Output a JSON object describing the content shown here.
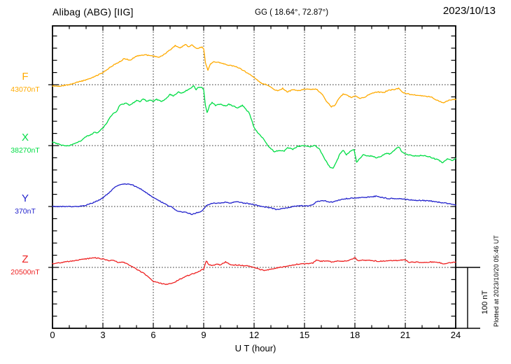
{
  "header": {
    "station_title": "Alibag (ABG)  [IIG]",
    "coords": "GG ( 18.64°, 72.87°)",
    "date": "2023/10/13"
  },
  "side": {
    "plotted_at": "Plotted at 2023/10/20 05:46 UT"
  },
  "chart_data": {
    "type": "line",
    "title": "Alibag (ABG) [IIG] magnetogram for 2023/10/13",
    "xlabel": "U T (hour)",
    "x_range": [
      0,
      24
    ],
    "x_major_ticks": [
      0,
      3,
      6,
      9,
      12,
      15,
      18,
      21,
      24
    ],
    "x_minor_step_hours": 1,
    "y_tick_step_nT": 20,
    "grid": "dotted vertical lines every 3 h; dotted horizontal baseline per component",
    "legend_position": "left margin, one label per baseline",
    "y_scale_bar": {
      "label": "100 nT",
      "nT": 100
    },
    "series": [
      {
        "name": "F",
        "label": "F",
        "base_label": "43070nT",
        "base_nT": 43070,
        "color": "#ffaa00",
        "units": "nT offset from baseline value",
        "points": [
          [
            0,
            -2
          ],
          [
            0.5,
            -2
          ],
          [
            1,
            0
          ],
          [
            1.5,
            4
          ],
          [
            2,
            8
          ],
          [
            2.5,
            13
          ],
          [
            3,
            20
          ],
          [
            3.5,
            30
          ],
          [
            4,
            38
          ],
          [
            4.3,
            43
          ],
          [
            4.6,
            40
          ],
          [
            5,
            47
          ],
          [
            5.5,
            49
          ],
          [
            6,
            47
          ],
          [
            6.3,
            45
          ],
          [
            6.6,
            49
          ],
          [
            7,
            57
          ],
          [
            7.3,
            64
          ],
          [
            7.6,
            60
          ],
          [
            7.9,
            66
          ],
          [
            8.1,
            62
          ],
          [
            8.3,
            65
          ],
          [
            8.6,
            59
          ],
          [
            8.9,
            62
          ],
          [
            9,
            59
          ],
          [
            9.1,
            36
          ],
          [
            9.25,
            24
          ],
          [
            9.4,
            34
          ],
          [
            9.6,
            38
          ],
          [
            10,
            36
          ],
          [
            10.5,
            32
          ],
          [
            11,
            29
          ],
          [
            11.5,
            21
          ],
          [
            12,
            12
          ],
          [
            12.4,
            3
          ],
          [
            12.8,
            -1
          ],
          [
            13.2,
            -8
          ],
          [
            13.4,
            -10
          ],
          [
            13.7,
            -6
          ],
          [
            14,
            -12
          ],
          [
            14.3,
            -8
          ],
          [
            14.7,
            -10
          ],
          [
            15,
            -7
          ],
          [
            15.4,
            -8
          ],
          [
            15.7,
            -7
          ],
          [
            16,
            -14
          ],
          [
            16.3,
            -27
          ],
          [
            16.6,
            -36
          ],
          [
            16.8,
            -34
          ],
          [
            17,
            -25
          ],
          [
            17.3,
            -15
          ],
          [
            17.5,
            -17
          ],
          [
            17.8,
            -21
          ],
          [
            18,
            -18
          ],
          [
            18.3,
            -22
          ],
          [
            18.6,
            -20
          ],
          [
            19,
            -14
          ],
          [
            19.4,
            -12
          ],
          [
            19.7,
            -13
          ],
          [
            20,
            -9
          ],
          [
            20.3,
            -8
          ],
          [
            20.6,
            -6
          ],
          [
            20.8,
            -12
          ],
          [
            21,
            -14
          ],
          [
            21.5,
            -17
          ],
          [
            22,
            -18
          ],
          [
            22.5,
            -20
          ],
          [
            23,
            -27
          ],
          [
            23.3,
            -30
          ],
          [
            23.6,
            -25
          ],
          [
            24,
            -24
          ]
        ]
      },
      {
        "name": "X",
        "label": "X",
        "base_label": "38270nT",
        "base_nT": 38270,
        "color": "#00dd44",
        "units": "nT offset from baseline value",
        "points": [
          [
            0,
            6
          ],
          [
            0.4,
            2
          ],
          [
            0.7,
            0
          ],
          [
            1,
            0
          ],
          [
            1.3,
            3
          ],
          [
            1.7,
            8
          ],
          [
            2,
            15
          ],
          [
            2.3,
            18
          ],
          [
            2.5,
            22
          ],
          [
            2.7,
            21
          ],
          [
            2.9,
            27
          ],
          [
            3,
            29
          ],
          [
            3.2,
            36
          ],
          [
            3.4,
            45
          ],
          [
            3.6,
            53
          ],
          [
            3.8,
            55
          ],
          [
            4,
            66
          ],
          [
            4.2,
            68
          ],
          [
            4.4,
            70
          ],
          [
            4.6,
            66
          ],
          [
            4.8,
            70
          ],
          [
            5,
            74
          ],
          [
            5.2,
            72
          ],
          [
            5.4,
            77
          ],
          [
            5.6,
            73
          ],
          [
            5.8,
            75
          ],
          [
            6,
            73
          ],
          [
            6.2,
            76
          ],
          [
            6.5,
            72
          ],
          [
            6.7,
            76
          ],
          [
            7,
            84
          ],
          [
            7.2,
            82
          ],
          [
            7.5,
            88
          ],
          [
            7.7,
            86
          ],
          [
            8,
            91
          ],
          [
            8.2,
            94
          ],
          [
            8.4,
            98
          ],
          [
            8.55,
            92
          ],
          [
            8.7,
            96
          ],
          [
            8.9,
            95
          ],
          [
            9,
            92
          ],
          [
            9.1,
            66
          ],
          [
            9.2,
            54
          ],
          [
            9.35,
            66
          ],
          [
            9.5,
            71
          ],
          [
            9.7,
            66
          ],
          [
            10,
            68
          ],
          [
            10.3,
            65
          ],
          [
            10.5,
            68
          ],
          [
            11,
            62
          ],
          [
            11.3,
            66
          ],
          [
            11.7,
            54
          ],
          [
            12,
            30
          ],
          [
            12.2,
            22
          ],
          [
            12.5,
            13
          ],
          [
            12.8,
            1
          ],
          [
            13,
            -5
          ],
          [
            13.2,
            -10
          ],
          [
            13.5,
            -8
          ],
          [
            13.8,
            -9
          ],
          [
            14,
            -3
          ],
          [
            14.3,
            -6
          ],
          [
            14.6,
            -1
          ],
          [
            15,
            0
          ],
          [
            15.3,
            -2
          ],
          [
            15.6,
            0
          ],
          [
            15.9,
            -6
          ],
          [
            16.2,
            -22
          ],
          [
            16.5,
            -35
          ],
          [
            16.7,
            -37
          ],
          [
            16.9,
            -27
          ],
          [
            17.1,
            -14
          ],
          [
            17.3,
            -8
          ],
          [
            17.5,
            -15
          ],
          [
            17.7,
            -10
          ],
          [
            17.95,
            -6
          ],
          [
            18.1,
            -27
          ],
          [
            18.3,
            -21
          ],
          [
            18.5,
            -15
          ],
          [
            18.8,
            -17
          ],
          [
            19,
            -17
          ],
          [
            19.3,
            -20
          ],
          [
            19.6,
            -17
          ],
          [
            19.9,
            -12
          ],
          [
            20.1,
            -14
          ],
          [
            20.4,
            -6
          ],
          [
            20.6,
            -2
          ],
          [
            20.8,
            -10
          ],
          [
            21,
            -14
          ],
          [
            21.3,
            -16
          ],
          [
            21.7,
            -17
          ],
          [
            22,
            -16
          ],
          [
            22.4,
            -18
          ],
          [
            22.7,
            -21
          ],
          [
            23,
            -24
          ],
          [
            23.2,
            -28
          ],
          [
            23.5,
            -22
          ],
          [
            23.8,
            -24
          ],
          [
            24,
            -21
          ]
        ]
      },
      {
        "name": "Y",
        "label": "Y",
        "base_label": "370nT",
        "base_nT": 370,
        "color": "#2222cc",
        "units": "nT offset from baseline value",
        "points": [
          [
            0,
            0
          ],
          [
            0.5,
            0
          ],
          [
            1,
            0
          ],
          [
            1.5,
            0
          ],
          [
            2,
            2
          ],
          [
            2.5,
            7
          ],
          [
            3,
            14
          ],
          [
            3.3,
            21
          ],
          [
            3.6,
            29
          ],
          [
            3.9,
            35
          ],
          [
            4.2,
            37
          ],
          [
            4.5,
            37
          ],
          [
            4.8,
            35
          ],
          [
            5,
            32
          ],
          [
            5.3,
            28
          ],
          [
            5.6,
            22
          ],
          [
            6,
            15
          ],
          [
            6.3,
            10
          ],
          [
            6.6,
            6
          ],
          [
            6.9,
            1
          ],
          [
            7.1,
            -1
          ],
          [
            7.4,
            -7
          ],
          [
            7.7,
            -9
          ],
          [
            8,
            -10
          ],
          [
            8.3,
            -13
          ],
          [
            8.6,
            -10
          ],
          [
            8.9,
            -8
          ],
          [
            9.05,
            -2
          ],
          [
            9.2,
            2
          ],
          [
            9.5,
            5
          ],
          [
            10,
            6
          ],
          [
            10.3,
            7
          ],
          [
            10.6,
            6
          ],
          [
            11,
            8
          ],
          [
            11.3,
            6
          ],
          [
            11.6,
            5
          ],
          [
            12,
            3
          ],
          [
            12.3,
            1
          ],
          [
            12.6,
            -1
          ],
          [
            13,
            -2
          ],
          [
            13.3,
            -5
          ],
          [
            13.6,
            -4
          ],
          [
            14,
            -2
          ],
          [
            14.3,
            0
          ],
          [
            14.6,
            1
          ],
          [
            15,
            1
          ],
          [
            15.3,
            1
          ],
          [
            15.5,
            3
          ],
          [
            15.7,
            8
          ],
          [
            16,
            9
          ],
          [
            16.3,
            9
          ],
          [
            16.5,
            7
          ],
          [
            16.8,
            8
          ],
          [
            17,
            10
          ],
          [
            17.5,
            13
          ],
          [
            18,
            14
          ],
          [
            18.5,
            15
          ],
          [
            19,
            16
          ],
          [
            19.3,
            17
          ],
          [
            19.6,
            15
          ],
          [
            20,
            13
          ],
          [
            20.5,
            13
          ],
          [
            21,
            12
          ],
          [
            21.5,
            10
          ],
          [
            22,
            10
          ],
          [
            22.5,
            9
          ],
          [
            23,
            7
          ],
          [
            23.5,
            5
          ],
          [
            24,
            3
          ]
        ]
      },
      {
        "name": "Z",
        "label": "Z",
        "base_label": "20500nT",
        "base_nT": 20500,
        "color": "#ee2222",
        "units": "nT offset from baseline value",
        "points": [
          [
            0,
            6
          ],
          [
            0.5,
            8
          ],
          [
            1,
            10
          ],
          [
            1.5,
            12
          ],
          [
            2,
            14
          ],
          [
            2.5,
            16
          ],
          [
            3,
            14
          ],
          [
            3.3,
            11
          ],
          [
            3.6,
            12
          ],
          [
            3.9,
            8
          ],
          [
            4.2,
            9
          ],
          [
            4.5,
            5
          ],
          [
            5,
            -3
          ],
          [
            5.5,
            -11
          ],
          [
            6,
            -23
          ],
          [
            6.4,
            -26
          ],
          [
            6.8,
            -28
          ],
          [
            7,
            -27
          ],
          [
            7.3,
            -24
          ],
          [
            7.6,
            -19
          ],
          [
            8,
            -14
          ],
          [
            8.5,
            -9
          ],
          [
            9,
            -3
          ],
          [
            9.15,
            11
          ],
          [
            9.3,
            5
          ],
          [
            9.5,
            3
          ],
          [
            9.8,
            5
          ],
          [
            10,
            4
          ],
          [
            10.3,
            9
          ],
          [
            10.6,
            4
          ],
          [
            11,
            4
          ],
          [
            11.5,
            3
          ],
          [
            12,
            0
          ],
          [
            12.4,
            -4
          ],
          [
            12.7,
            -5
          ],
          [
            13,
            -3
          ],
          [
            13.5,
            0
          ],
          [
            14,
            2
          ],
          [
            14.5,
            5
          ],
          [
            15,
            6
          ],
          [
            15.5,
            7
          ],
          [
            15.7,
            12
          ],
          [
            16,
            10
          ],
          [
            16.3,
            11
          ],
          [
            16.6,
            9
          ],
          [
            17,
            11
          ],
          [
            17.3,
            10
          ],
          [
            17.6,
            11
          ],
          [
            18,
            16
          ],
          [
            18.2,
            11
          ],
          [
            18.5,
            12
          ],
          [
            19,
            11
          ],
          [
            19.5,
            10
          ],
          [
            20,
            11
          ],
          [
            20.5,
            11
          ],
          [
            21,
            13
          ],
          [
            21.2,
            8
          ],
          [
            21.5,
            9
          ],
          [
            22,
            8
          ],
          [
            22.5,
            9
          ],
          [
            23,
            8
          ],
          [
            23.3,
            6
          ],
          [
            23.6,
            8
          ],
          [
            24,
            8
          ]
        ]
      }
    ]
  }
}
